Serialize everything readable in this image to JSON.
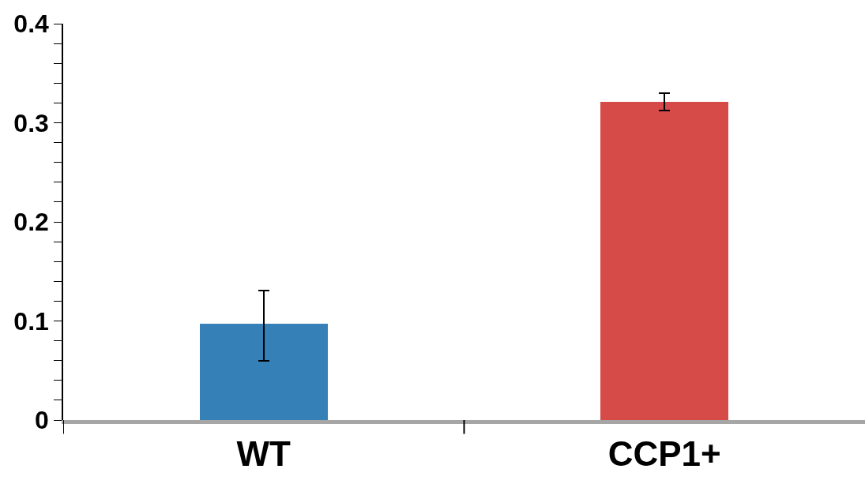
{
  "chart_data": {
    "type": "bar",
    "categories": [
      "WT",
      "CCP1+"
    ],
    "values": [
      0.097,
      0.321
    ],
    "colors": [
      "#3680b8",
      "#d64a47"
    ],
    "errors": [
      [
        0.06,
        0.131
      ],
      [
        0.312,
        0.33
      ]
    ],
    "ylim": [
      0,
      0.4
    ],
    "yticks": [
      0,
      {
        "value": 0.02,
        "label": null
      },
      {
        "value": 0.04,
        "label": null
      },
      {
        "value": 0.06,
        "label": null
      },
      {
        "value": 0.08,
        "label": null
      },
      0.1,
      {
        "value": 0.12,
        "label": null
      },
      {
        "value": 0.14,
        "label": null
      },
      {
        "value": 0.16,
        "label": null
      },
      {
        "value": 0.18,
        "label": null
      },
      0.2,
      {
        "value": 0.22,
        "label": null
      },
      {
        "value": 0.24,
        "label": null
      },
      {
        "value": 0.26,
        "label": null
      },
      {
        "value": 0.28,
        "label": null
      },
      0.3,
      {
        "value": 0.32,
        "label": null
      },
      {
        "value": 0.34,
        "label": null
      },
      {
        "value": 0.36,
        "label": null
      },
      {
        "value": 0.38,
        "label": null
      },
      0.4
    ]
  }
}
